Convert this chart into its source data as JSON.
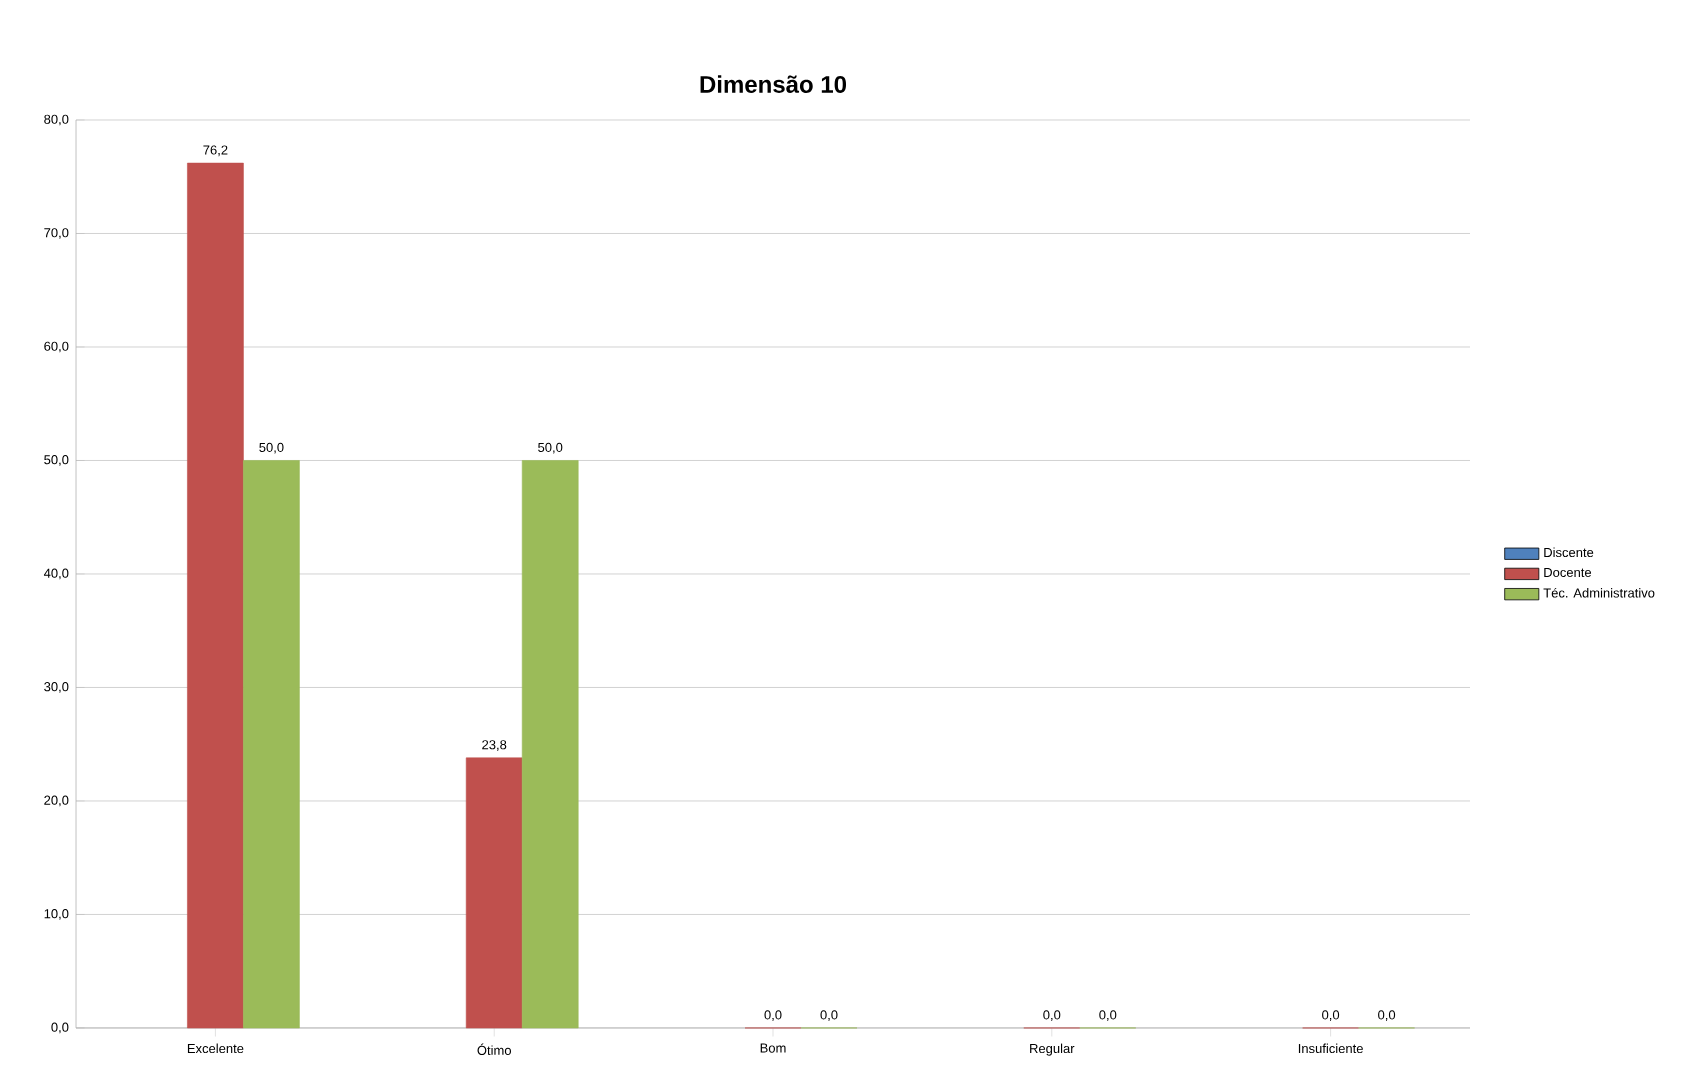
{
  "chart_data": {
    "type": "bar",
    "title": "Dimensão 10",
    "categories": [
      "Excelente",
      "Ótimo",
      "Bom",
      "Regular",
      "Insuficiente"
    ],
    "series": [
      {
        "name": "Discente",
        "color": "#4f81bd",
        "values": [
          null,
          null,
          null,
          null,
          null
        ]
      },
      {
        "name": "Docente",
        "color": "#c0504d",
        "values": [
          76.2,
          23.8,
          0.0,
          0.0,
          0.0
        ],
        "value_labels": [
          "76,2",
          "23,8",
          "0,0",
          "0,0",
          "0,0"
        ]
      },
      {
        "name": "Téc. Administrativo",
        "color": "#9bbb59",
        "values": [
          50.0,
          50.0,
          0.0,
          0.0,
          0.0
        ],
        "value_labels": [
          "50,0",
          "50,0",
          "0,0",
          "0,0",
          "0,0"
        ]
      }
    ],
    "ylim": [
      0,
      80
    ],
    "yticks": [
      {
        "value": 0,
        "label": "0,0"
      },
      {
        "value": 10,
        "label": "10,0"
      },
      {
        "value": 20,
        "label": "20,0"
      },
      {
        "value": 30,
        "label": "30,0"
      },
      {
        "value": 40,
        "label": "40,0"
      },
      {
        "value": 50,
        "label": "50,0"
      },
      {
        "value": 60,
        "label": "60,0"
      },
      {
        "value": 70,
        "label": "70,0"
      },
      {
        "value": 80,
        "label": "80,0"
      }
    ],
    "grid": "y",
    "legend": "right"
  }
}
